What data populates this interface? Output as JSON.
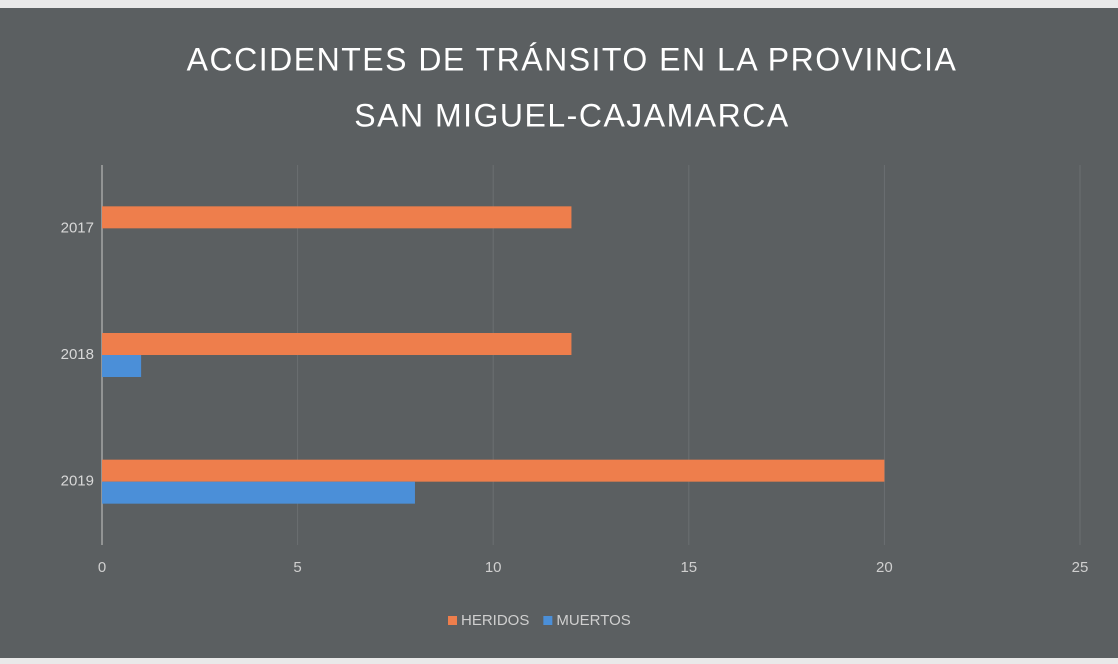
{
  "chart_data": {
    "type": "barh",
    "title": [
      "ACCIDENTES DE TRÁNSITO EN LA PROVINCIA",
      "SAN MIGUEL-CAJAMARCA"
    ],
    "categories": [
      "2017",
      "2018",
      "2019"
    ],
    "series": [
      {
        "name": "HERIDOS",
        "color": "#ee7e4c",
        "values": [
          12,
          12,
          20
        ]
      },
      {
        "name": "MUERTOS",
        "color": "#4b8fd8",
        "values": [
          0,
          1,
          8
        ]
      }
    ],
    "xlim": [
      0,
      25
    ],
    "xticks": [
      0,
      5,
      10,
      15,
      20,
      25
    ],
    "grid": true,
    "legend": "bottom"
  }
}
